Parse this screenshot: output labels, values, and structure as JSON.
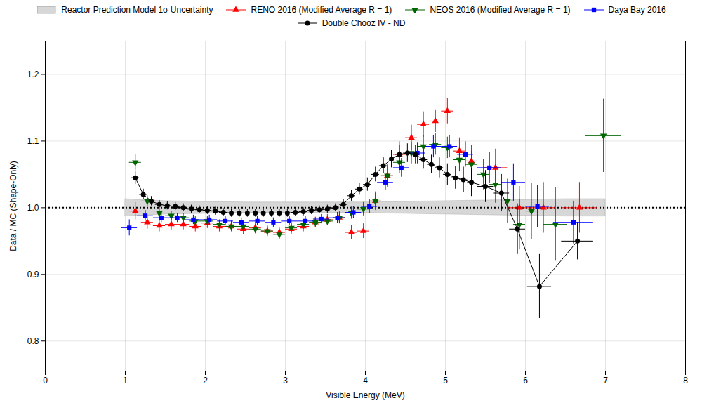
{
  "chart_data": {
    "type": "errorbar",
    "xlabel": "Visible Energy (MeV)",
    "ylabel": "Data / MC (Shape-Only)",
    "xlim": [
      0,
      8
    ],
    "ylim": [
      0.755,
      1.25
    ],
    "xticks": [
      0,
      1,
      2,
      3,
      4,
      5,
      6,
      7,
      8
    ],
    "yticks": [
      0.8,
      0.9,
      {
        "value": 1.0,
        "label": "1.0"
      },
      1.1,
      1.2
    ],
    "grid": true,
    "legend": "top",
    "background_color": "#ffffff",
    "reference_lines": [
      {
        "y": 1.0,
        "color": "black",
        "line_style": "dotted"
      }
    ],
    "series": [
      {
        "name": "Reactor Prediction Model 1σ Uncertainty",
        "type": "area",
        "color": "lightgray",
        "x": [
          1.0,
          1.5,
          2.0,
          2.5,
          3.0,
          3.5,
          4.0,
          4.5,
          5.0,
          5.5,
          6.0,
          6.5,
          7.0
        ],
        "upper": [
          1.013,
          1.01,
          1.009,
          1.008,
          1.008,
          1.008,
          1.008,
          1.009,
          1.01,
          1.011,
          1.012,
          1.013,
          1.013
        ],
        "lower": [
          0.987,
          0.99,
          0.991,
          0.992,
          0.992,
          0.992,
          0.992,
          0.991,
          0.99,
          0.989,
          0.988,
          0.987,
          0.987
        ]
      },
      {
        "name": "RENO 2016  (Modified Average R = 1)",
        "type": "errorbar",
        "color": "red",
        "marker": "triangle-up",
        "line_style": "none",
        "x": [
          1.125,
          1.275,
          1.425,
          1.575,
          1.725,
          1.875,
          2.025,
          2.175,
          2.325,
          2.475,
          2.625,
          2.775,
          2.925,
          3.075,
          3.225,
          3.375,
          3.525,
          3.675,
          3.825,
          3.975,
          4.125,
          4.275,
          4.425,
          4.575,
          4.725,
          4.875,
          5.025,
          5.175,
          5.325,
          5.625,
          5.925,
          6.225,
          6.675
        ],
        "values": [
          0.995,
          0.978,
          0.973,
          0.975,
          0.975,
          0.972,
          0.977,
          0.972,
          0.972,
          0.968,
          0.97,
          0.965,
          0.963,
          0.968,
          0.972,
          0.978,
          0.982,
          0.985,
          0.963,
          0.965,
          1.01,
          1.048,
          1.08,
          1.105,
          1.125,
          1.13,
          1.145,
          1.085,
          1.07,
          1.06,
          1.0,
          1.0,
          1.0
        ],
        "xerr": [
          0.075,
          0.075,
          0.075,
          0.075,
          0.075,
          0.075,
          0.075,
          0.075,
          0.075,
          0.075,
          0.075,
          0.075,
          0.075,
          0.075,
          0.075,
          0.075,
          0.075,
          0.075,
          0.075,
          0.075,
          0.075,
          0.075,
          0.075,
          0.075,
          0.075,
          0.075,
          0.075,
          0.075,
          0.075,
          0.15,
          0.15,
          0.15,
          0.225
        ],
        "yerr": [
          0.013,
          0.01,
          0.009,
          0.008,
          0.008,
          0.008,
          0.008,
          0.008,
          0.008,
          0.008,
          0.008,
          0.008,
          0.008,
          0.008,
          0.008,
          0.008,
          0.008,
          0.009,
          0.01,
          0.011,
          0.014,
          0.017,
          0.019,
          0.019,
          0.019,
          0.017,
          0.019,
          0.02,
          0.024,
          0.028,
          0.032,
          0.038,
          0.038
        ]
      },
      {
        "name": "NEOS 2016  (Modified Average R = 1)",
        "type": "errorbar",
        "color": "darkgreen",
        "marker": "triangle-down",
        "line_style": "none",
        "x": [
          1.125,
          1.275,
          1.425,
          1.575,
          1.725,
          1.875,
          2.025,
          2.175,
          2.325,
          2.475,
          2.625,
          2.775,
          2.925,
          3.075,
          3.225,
          3.375,
          3.525,
          3.675,
          3.825,
          3.975,
          4.125,
          4.275,
          4.425,
          4.575,
          4.725,
          4.875,
          5.025,
          5.175,
          5.325,
          5.475,
          5.625,
          5.775,
          5.925,
          6.075,
          6.375,
          6.975
        ],
        "values": [
          1.068,
          1.01,
          0.992,
          0.988,
          0.985,
          0.98,
          0.98,
          0.975,
          0.972,
          0.972,
          0.968,
          0.965,
          0.96,
          0.97,
          0.975,
          0.978,
          0.98,
          0.985,
          0.992,
          0.998,
          1.01,
          1.048,
          1.068,
          1.082,
          1.092,
          1.095,
          1.09,
          1.072,
          1.065,
          1.05,
          1.035,
          1.01,
          0.975,
          0.995,
          0.975,
          1.108
        ],
        "xerr": [
          0.075,
          0.075,
          0.075,
          0.075,
          0.075,
          0.075,
          0.075,
          0.075,
          0.075,
          0.075,
          0.075,
          0.075,
          0.075,
          0.075,
          0.075,
          0.075,
          0.075,
          0.075,
          0.075,
          0.075,
          0.075,
          0.075,
          0.075,
          0.075,
          0.075,
          0.075,
          0.075,
          0.075,
          0.075,
          0.075,
          0.075,
          0.075,
          0.075,
          0.075,
          0.15,
          0.225
        ],
        "yerr": [
          0.012,
          0.008,
          0.007,
          0.007,
          0.007,
          0.007,
          0.007,
          0.007,
          0.007,
          0.007,
          0.007,
          0.007,
          0.007,
          0.007,
          0.007,
          0.007,
          0.007,
          0.008,
          0.009,
          0.01,
          0.012,
          0.014,
          0.016,
          0.016,
          0.016,
          0.016,
          0.016,
          0.018,
          0.02,
          0.023,
          0.028,
          0.033,
          0.038,
          0.042,
          0.055,
          0.055
        ]
      },
      {
        "name": "Daya Bay 2016",
        "type": "errorbar",
        "color": "blue",
        "marker": "square",
        "line_style": "none",
        "x": [
          1.05,
          1.25,
          1.45,
          1.65,
          1.85,
          2.05,
          2.25,
          2.45,
          2.65,
          2.85,
          3.05,
          3.25,
          3.45,
          3.65,
          3.85,
          4.05,
          4.25,
          4.45,
          4.65,
          4.85,
          5.05,
          5.25,
          5.55,
          5.85,
          6.15,
          6.6
        ],
        "values": [
          0.97,
          0.988,
          0.985,
          0.985,
          0.982,
          0.982,
          0.98,
          0.978,
          0.98,
          0.978,
          0.98,
          0.98,
          0.983,
          0.985,
          0.993,
          1.002,
          1.038,
          1.06,
          1.082,
          1.092,
          1.092,
          1.08,
          1.06,
          1.038,
          1.002,
          0.978
        ],
        "xerr": [
          0.1,
          0.1,
          0.1,
          0.1,
          0.1,
          0.1,
          0.1,
          0.1,
          0.1,
          0.1,
          0.1,
          0.1,
          0.1,
          0.1,
          0.1,
          0.1,
          0.1,
          0.1,
          0.1,
          0.1,
          0.1,
          0.1,
          0.15,
          0.15,
          0.15,
          0.25
        ],
        "yerr": [
          0.012,
          0.008,
          0.007,
          0.007,
          0.007,
          0.007,
          0.007,
          0.007,
          0.007,
          0.007,
          0.007,
          0.007,
          0.007,
          0.008,
          0.009,
          0.01,
          0.012,
          0.014,
          0.016,
          0.017,
          0.017,
          0.019,
          0.023,
          0.028,
          0.032,
          0.032
        ]
      },
      {
        "name": "Double Chooz IV - ND",
        "type": "errorbar",
        "color": "black",
        "marker": "circle",
        "line_style": "solid",
        "x": [
          1.125,
          1.225,
          1.325,
          1.425,
          1.525,
          1.625,
          1.725,
          1.825,
          1.925,
          2.025,
          2.125,
          2.225,
          2.325,
          2.425,
          2.525,
          2.625,
          2.725,
          2.825,
          2.925,
          3.025,
          3.125,
          3.225,
          3.325,
          3.425,
          3.525,
          3.625,
          3.725,
          3.825,
          3.925,
          4.025,
          4.125,
          4.225,
          4.325,
          4.425,
          4.525,
          4.625,
          4.725,
          4.825,
          4.925,
          5.025,
          5.125,
          5.225,
          5.325,
          5.5,
          5.7,
          5.9,
          6.175,
          6.65
        ],
        "values": [
          1.045,
          1.02,
          1.01,
          1.005,
          1.003,
          1.002,
          1.0,
          0.998,
          0.997,
          0.996,
          0.995,
          0.993,
          0.992,
          0.992,
          0.992,
          0.992,
          0.992,
          0.992,
          0.992,
          0.992,
          0.993,
          0.994,
          0.996,
          0.997,
          0.998,
          1.0,
          1.005,
          1.018,
          1.028,
          1.035,
          1.05,
          1.063,
          1.073,
          1.08,
          1.082,
          1.08,
          1.072,
          1.065,
          1.06,
          1.05,
          1.045,
          1.042,
          1.038,
          1.032,
          1.022,
          0.968,
          0.882,
          0.95
        ],
        "xerr": [
          0.05,
          0.05,
          0.05,
          0.05,
          0.05,
          0.05,
          0.05,
          0.05,
          0.05,
          0.05,
          0.05,
          0.05,
          0.05,
          0.05,
          0.05,
          0.05,
          0.05,
          0.05,
          0.05,
          0.05,
          0.05,
          0.05,
          0.05,
          0.05,
          0.05,
          0.05,
          0.05,
          0.05,
          0.05,
          0.05,
          0.05,
          0.05,
          0.05,
          0.05,
          0.05,
          0.05,
          0.05,
          0.05,
          0.05,
          0.05,
          0.05,
          0.05,
          0.05,
          0.1,
          0.1,
          0.1,
          0.15,
          0.2
        ],
        "yerr": [
          0.01,
          0.008,
          0.007,
          0.006,
          0.006,
          0.006,
          0.006,
          0.006,
          0.006,
          0.006,
          0.006,
          0.006,
          0.006,
          0.006,
          0.006,
          0.006,
          0.006,
          0.006,
          0.006,
          0.006,
          0.006,
          0.006,
          0.006,
          0.006,
          0.006,
          0.006,
          0.007,
          0.008,
          0.009,
          0.01,
          0.011,
          0.012,
          0.013,
          0.014,
          0.014,
          0.014,
          0.014,
          0.014,
          0.015,
          0.016,
          0.017,
          0.019,
          0.021,
          0.024,
          0.028,
          0.038,
          0.048,
          0.028
        ]
      }
    ]
  }
}
